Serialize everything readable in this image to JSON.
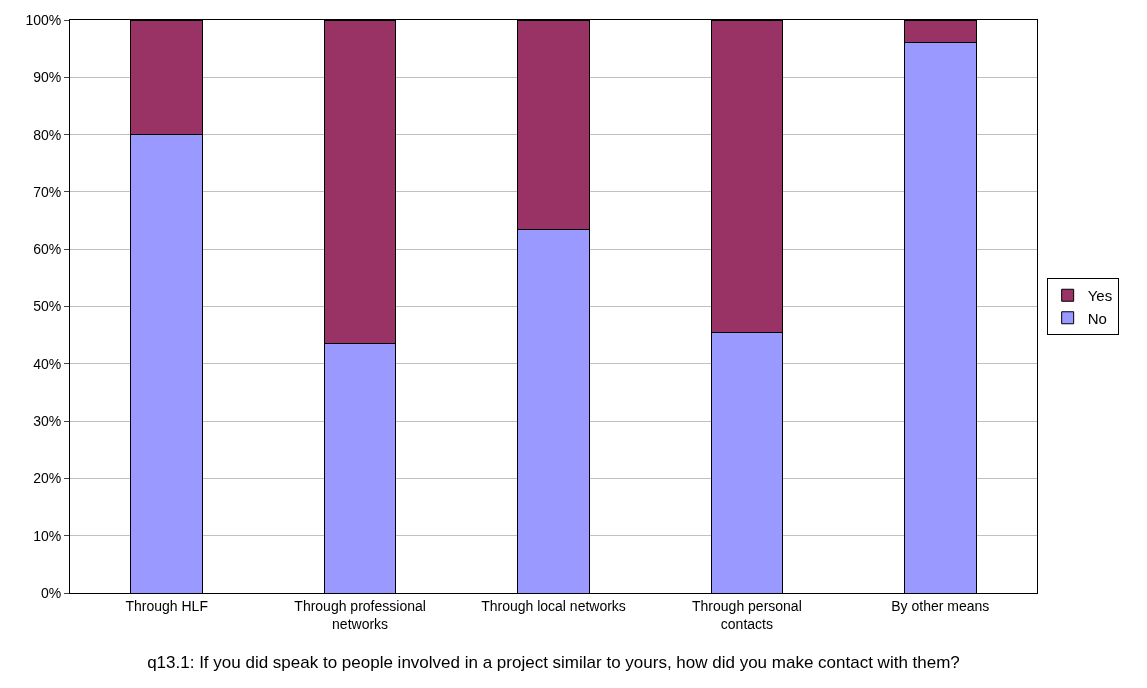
{
  "chart_data": {
    "type": "bar",
    "stacked": true,
    "xlabel": "q13.1: If you did speak to people involved in a project similar to yours, how did you make contact with them?",
    "categories": [
      "Through HLF",
      "Through professional networks",
      "Through local networks",
      "Through personal contacts",
      "By other means"
    ],
    "series": [
      {
        "name": "No",
        "color": "#9999ff",
        "values": [
          80,
          43.5,
          63.5,
          45.5,
          96
        ]
      },
      {
        "name": "Yes",
        "color": "#993366",
        "values": [
          20,
          56.5,
          36.5,
          54.5,
          4
        ]
      }
    ],
    "ylim": [
      0,
      100
    ],
    "yticks": [
      {
        "value": 0,
        "label": "0%"
      },
      {
        "value": 10,
        "label": "10%"
      },
      {
        "value": 20,
        "label": "20%"
      },
      {
        "value": 30,
        "label": "30%"
      },
      {
        "value": 40,
        "label": "40%"
      },
      {
        "value": 50,
        "label": "50%"
      },
      {
        "value": 60,
        "label": "60%"
      },
      {
        "value": 70,
        "label": "70%"
      },
      {
        "value": 80,
        "label": "80%"
      },
      {
        "value": 90,
        "label": "90%"
      },
      {
        "value": 100,
        "label": "100%"
      }
    ],
    "grid": "y",
    "legend": "right"
  }
}
